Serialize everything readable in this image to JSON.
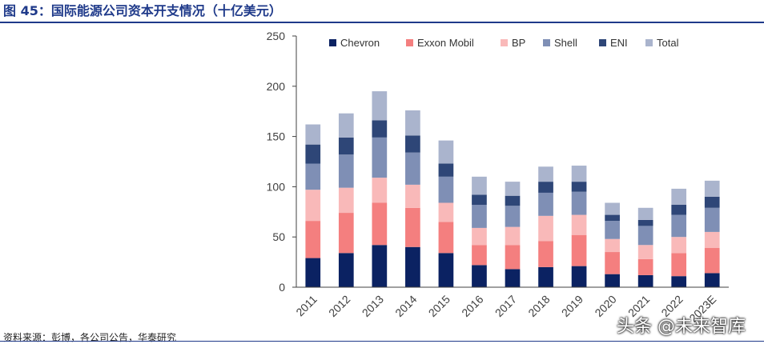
{
  "figure": {
    "title": "图 45：国际能源公司资本开支情况（十亿美元）",
    "source": "资料来源：彭博，各公司公告，华泰研究",
    "watermark": "头条 @未来智库"
  },
  "colors": {
    "Chevron": "#0b2262",
    "Exxon Mobil": "#f47f7f",
    "BP": "#f9b9b9",
    "Shell": "#7f8fb5",
    "ENI": "#2e4677",
    "Total": "#aab4cd",
    "axis": "#404040",
    "title": "#1f3a8a"
  },
  "chart_data": {
    "type": "bar",
    "stacked": true,
    "title": "",
    "xlabel": "",
    "ylabel": "",
    "ylim": [
      0,
      250
    ],
    "yticks": [
      0,
      50,
      100,
      150,
      200,
      250
    ],
    "grid": false,
    "legend_position": "top",
    "categories": [
      "2011",
      "2012",
      "2013",
      "2014",
      "2015",
      "2016",
      "2017",
      "2018",
      "2019",
      "2020",
      "2021",
      "2022",
      "2023E"
    ],
    "series": [
      {
        "name": "Chevron",
        "values": [
          29,
          34,
          42,
          40,
          34,
          22,
          18,
          20,
          21,
          13,
          12,
          11,
          14
        ]
      },
      {
        "name": "Exxon Mobil",
        "values": [
          37,
          40,
          42,
          39,
          31,
          20,
          24,
          26,
          31,
          22,
          16,
          23,
          25
        ]
      },
      {
        "name": "BP",
        "values": [
          31,
          25,
          25,
          23,
          19,
          17,
          18,
          25,
          20,
          13,
          14,
          16,
          16
        ]
      },
      {
        "name": "Shell",
        "values": [
          26,
          33,
          40,
          32,
          26,
          23,
          21,
          23,
          23,
          18,
          19,
          22,
          24
        ]
      },
      {
        "name": "ENI",
        "values": [
          19,
          17,
          17,
          17,
          13,
          10,
          10,
          11,
          10,
          6,
          6,
          10,
          11
        ]
      },
      {
        "name": "Total",
        "values": [
          20,
          24,
          29,
          25,
          23,
          18,
          14,
          15,
          16,
          12,
          12,
          16,
          16
        ]
      }
    ]
  }
}
